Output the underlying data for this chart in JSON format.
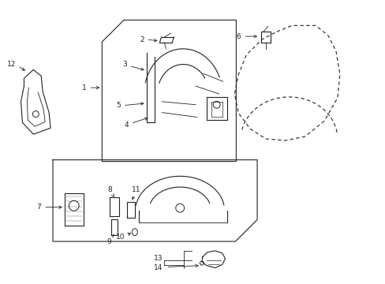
{
  "bg_color": "#ffffff",
  "line_color": "#222222",
  "figsize": [
    4.89,
    3.6
  ],
  "dpi": 100
}
